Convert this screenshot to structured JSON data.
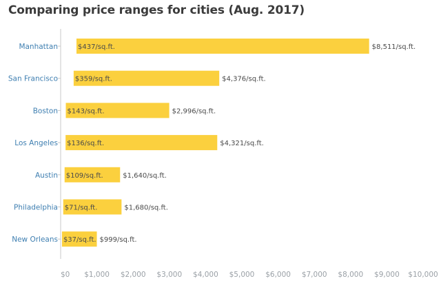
{
  "chart_data": {
    "type": "bar",
    "title": "Comparing price ranges for cities (Aug. 2017)",
    "categories": [
      "Manhattan",
      "San Francisco",
      "Boston",
      "Los Angeles",
      "Austin",
      "Philadelphia",
      "New Orleans"
    ],
    "series": [
      {
        "values_min": [
          437,
          359,
          143,
          136,
          109,
          71,
          37
        ],
        "values_max": [
          8511,
          4376,
          2996,
          4321,
          1640,
          1680,
          999
        ],
        "labels_min": [
          "$437/sq.ft.",
          "$359/sq.ft.",
          "$143/sq.ft.",
          "$136/sq.ft.",
          "$109/sq.ft.",
          "$71/sq.ft.",
          "$37/sq.ft."
        ],
        "labels_max": [
          "$8,511/sq.ft.",
          "$4,376/sq.ft.",
          "$2,996/sq.ft.",
          "$4,321/sq.ft.",
          "$1,640/sq.ft.",
          "$1,680/sq.ft.",
          "$999/sq.ft."
        ]
      }
    ],
    "xlim": [
      0,
      10000
    ],
    "xticks": [
      0,
      1000,
      2000,
      3000,
      4000,
      5000,
      6000,
      7000,
      8000,
      9000,
      10000
    ],
    "xtick_labels": [
      "$0",
      "$1,000",
      "$2,000",
      "$3,000",
      "$4,000",
      "$5,000",
      "$6,000",
      "$7,000",
      "$8,000",
      "$9,000",
      "$10,000"
    ],
    "xlabel": "",
    "ylabel": "",
    "grid": false,
    "bar_color": "#fbd03e",
    "category_label_color": "#3f7fb1",
    "first_category_label_color": "#8a8f94",
    "tick_label_color": "#9aa0a6",
    "axis_color": "#c8c8c8"
  }
}
